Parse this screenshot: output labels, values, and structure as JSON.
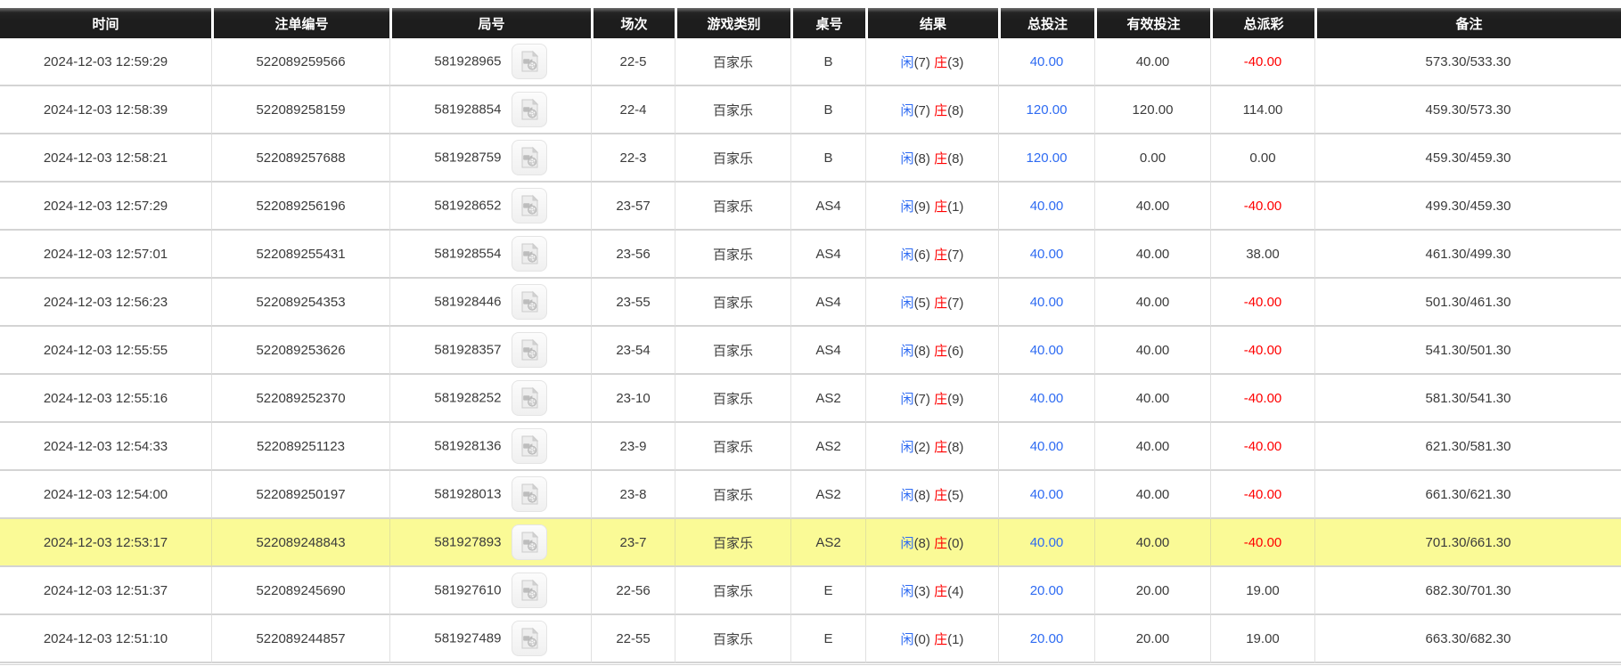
{
  "colors": {
    "header_bg": "#1d1d1d",
    "header_text": "#ffffff",
    "accent_blue": "#2e6bf2",
    "accent_red": "#ff0000",
    "highlight_yellow": "#fafa96"
  },
  "table": {
    "columns": [
      {
        "key": "time",
        "label": "时间"
      },
      {
        "key": "bet-id",
        "label": "注单编号"
      },
      {
        "key": "round-no",
        "label": "局号"
      },
      {
        "key": "session",
        "label": "场次"
      },
      {
        "key": "game-type",
        "label": "游戏类别"
      },
      {
        "key": "table-no",
        "label": "桌号"
      },
      {
        "key": "result",
        "label": "结果"
      },
      {
        "key": "total-bet",
        "label": "总投注"
      },
      {
        "key": "valid-bet",
        "label": "有效投注"
      },
      {
        "key": "total-payout",
        "label": "总派彩"
      },
      {
        "key": "remark",
        "label": "备注"
      }
    ],
    "video_icon": "video-replay-icon",
    "rows": [
      {
        "time": "2024-12-03 12:59:29",
        "bet_id": "522089259566",
        "round_no": "581928965",
        "session": "22-5",
        "game_type": "百家乐",
        "table_no": "B",
        "result": {
          "player": "闲",
          "player_score": "(7)",
          "banker": "庄",
          "banker_score": "(3)"
        },
        "total_bet": "40.00",
        "valid_bet": "40.00",
        "total_payout": "-40.00",
        "remark": "573.30/533.30",
        "highlighted": false
      },
      {
        "time": "2024-12-03 12:58:39",
        "bet_id": "522089258159",
        "round_no": "581928854",
        "session": "22-4",
        "game_type": "百家乐",
        "table_no": "B",
        "result": {
          "player": "闲",
          "player_score": "(7)",
          "banker": "庄",
          "banker_score": "(8)"
        },
        "total_bet": "120.00",
        "valid_bet": "120.00",
        "total_payout": "114.00",
        "remark": "459.30/573.30",
        "highlighted": false
      },
      {
        "time": "2024-12-03 12:58:21",
        "bet_id": "522089257688",
        "round_no": "581928759",
        "session": "22-3",
        "game_type": "百家乐",
        "table_no": "B",
        "result": {
          "player": "闲",
          "player_score": "(8)",
          "banker": "庄",
          "banker_score": "(8)"
        },
        "total_bet": "120.00",
        "valid_bet": "0.00",
        "total_payout": "0.00",
        "remark": "459.30/459.30",
        "highlighted": false
      },
      {
        "time": "2024-12-03 12:57:29",
        "bet_id": "522089256196",
        "round_no": "581928652",
        "session": "23-57",
        "game_type": "百家乐",
        "table_no": "AS4",
        "result": {
          "player": "闲",
          "player_score": "(9)",
          "banker": "庄",
          "banker_score": "(1)"
        },
        "total_bet": "40.00",
        "valid_bet": "40.00",
        "total_payout": "-40.00",
        "remark": "499.30/459.30",
        "highlighted": false
      },
      {
        "time": "2024-12-03 12:57:01",
        "bet_id": "522089255431",
        "round_no": "581928554",
        "session": "23-56",
        "game_type": "百家乐",
        "table_no": "AS4",
        "result": {
          "player": "闲",
          "player_score": "(6)",
          "banker": "庄",
          "banker_score": "(7)"
        },
        "total_bet": "40.00",
        "valid_bet": "40.00",
        "total_payout": "38.00",
        "remark": "461.30/499.30",
        "highlighted": false
      },
      {
        "time": "2024-12-03 12:56:23",
        "bet_id": "522089254353",
        "round_no": "581928446",
        "session": "23-55",
        "game_type": "百家乐",
        "table_no": "AS4",
        "result": {
          "player": "闲",
          "player_score": "(5)",
          "banker": "庄",
          "banker_score": "(7)"
        },
        "total_bet": "40.00",
        "valid_bet": "40.00",
        "total_payout": "-40.00",
        "remark": "501.30/461.30",
        "highlighted": false
      },
      {
        "time": "2024-12-03 12:55:55",
        "bet_id": "522089253626",
        "round_no": "581928357",
        "session": "23-54",
        "game_type": "百家乐",
        "table_no": "AS4",
        "result": {
          "player": "闲",
          "player_score": "(8)",
          "banker": "庄",
          "banker_score": "(6)"
        },
        "total_bet": "40.00",
        "valid_bet": "40.00",
        "total_payout": "-40.00",
        "remark": "541.30/501.30",
        "highlighted": false
      },
      {
        "time": "2024-12-03 12:55:16",
        "bet_id": "522089252370",
        "round_no": "581928252",
        "session": "23-10",
        "game_type": "百家乐",
        "table_no": "AS2",
        "result": {
          "player": "闲",
          "player_score": "(7)",
          "banker": "庄",
          "banker_score": "(9)"
        },
        "total_bet": "40.00",
        "valid_bet": "40.00",
        "total_payout": "-40.00",
        "remark": "581.30/541.30",
        "highlighted": false
      },
      {
        "time": "2024-12-03 12:54:33",
        "bet_id": "522089251123",
        "round_no": "581928136",
        "session": "23-9",
        "game_type": "百家乐",
        "table_no": "AS2",
        "result": {
          "player": "闲",
          "player_score": "(2)",
          "banker": "庄",
          "banker_score": "(8)"
        },
        "total_bet": "40.00",
        "valid_bet": "40.00",
        "total_payout": "-40.00",
        "remark": "621.30/581.30",
        "highlighted": false
      },
      {
        "time": "2024-12-03 12:54:00",
        "bet_id": "522089250197",
        "round_no": "581928013",
        "session": "23-8",
        "game_type": "百家乐",
        "table_no": "AS2",
        "result": {
          "player": "闲",
          "player_score": "(8)",
          "banker": "庄",
          "banker_score": "(5)"
        },
        "total_bet": "40.00",
        "valid_bet": "40.00",
        "total_payout": "-40.00",
        "remark": "661.30/621.30",
        "highlighted": false
      },
      {
        "time": "2024-12-03 12:53:17",
        "bet_id": "522089248843",
        "round_no": "581927893",
        "session": "23-7",
        "game_type": "百家乐",
        "table_no": "AS2",
        "result": {
          "player": "闲",
          "player_score": "(8)",
          "banker": "庄",
          "banker_score": "(0)"
        },
        "total_bet": "40.00",
        "valid_bet": "40.00",
        "total_payout": "-40.00",
        "remark": "701.30/661.30",
        "highlighted": true
      },
      {
        "time": "2024-12-03 12:51:37",
        "bet_id": "522089245690",
        "round_no": "581927610",
        "session": "22-56",
        "game_type": "百家乐",
        "table_no": "E",
        "result": {
          "player": "闲",
          "player_score": "(3)",
          "banker": "庄",
          "banker_score": "(4)"
        },
        "total_bet": "20.00",
        "valid_bet": "20.00",
        "total_payout": "19.00",
        "remark": "682.30/701.30",
        "highlighted": false
      },
      {
        "time": "2024-12-03 12:51:10",
        "bet_id": "522089244857",
        "round_no": "581927489",
        "session": "22-55",
        "game_type": "百家乐",
        "table_no": "E",
        "result": {
          "player": "闲",
          "player_score": "(0)",
          "banker": "庄",
          "banker_score": "(1)"
        },
        "total_bet": "20.00",
        "valid_bet": "20.00",
        "total_payout": "19.00",
        "remark": "663.30/682.30",
        "highlighted": false
      }
    ]
  }
}
